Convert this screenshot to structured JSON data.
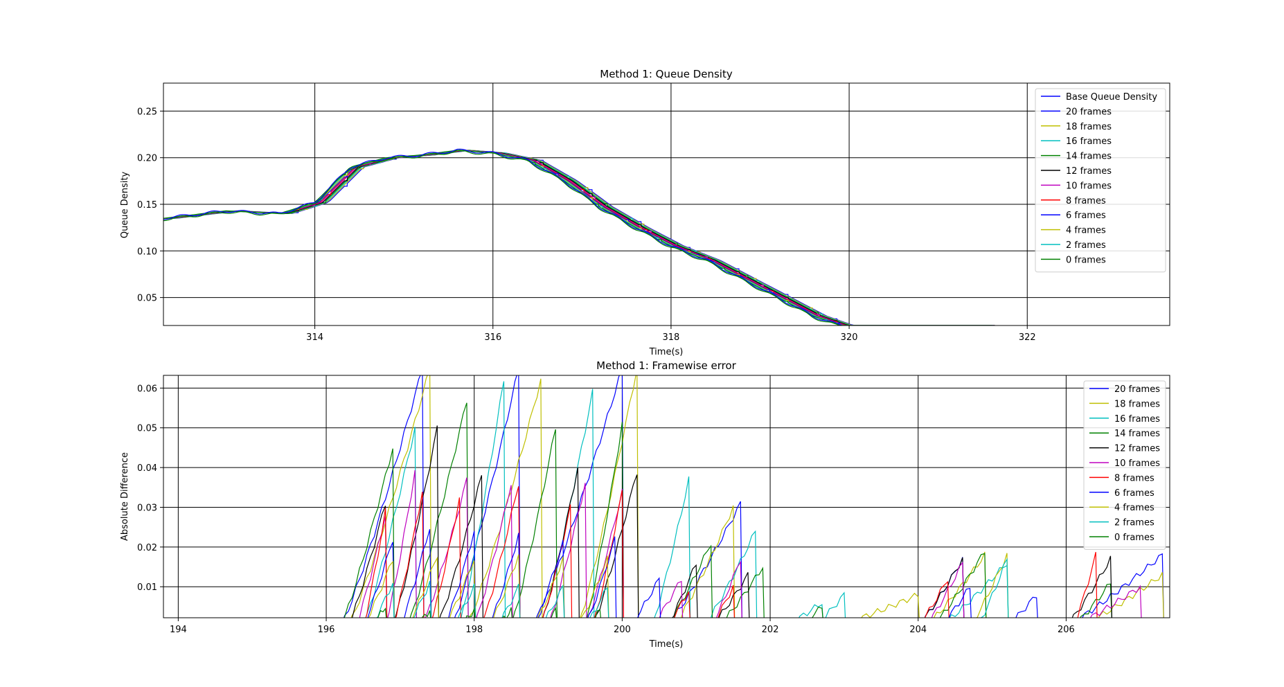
{
  "chart_data": [
    {
      "type": "line",
      "title": "Method 1: Queue Density",
      "xlabel": "Time(s)",
      "ylabel": "Queue Density",
      "xlim": [
        312.3,
        323.6
      ],
      "ylim": [
        0.02,
        0.28
      ],
      "xticks": [
        314,
        316,
        318,
        320,
        322
      ],
      "xtick_labels": [
        "314",
        "316",
        "318",
        "320",
        "322"
      ],
      "yticks": [
        0.05,
        0.1,
        0.15,
        0.2,
        0.25
      ],
      "ytick_labels": [
        "0.05",
        "0.10",
        "0.15",
        "0.20",
        "0.25"
      ],
      "grid": true,
      "legend_position": "top-right",
      "series": [
        {
          "name": "Base Queue Density",
          "color": "#0000ff",
          "x": [
            312.3,
            313.0,
            313.6,
            314.0,
            314.4,
            314.8,
            315.2,
            315.6,
            316.0,
            316.4,
            316.8,
            317.2,
            317.6,
            318.0,
            318.4,
            318.8,
            319.2,
            319.6,
            319.9
          ],
          "y": [
            0.135,
            0.143,
            0.14,
            0.152,
            0.19,
            0.2,
            0.203,
            0.208,
            0.205,
            0.197,
            0.175,
            0.147,
            0.125,
            0.105,
            0.09,
            0.07,
            0.05,
            0.03,
            0.02
          ]
        },
        {
          "name": "20 frames",
          "color": "#0000ff",
          "shift": 1.0
        },
        {
          "name": "18 frames",
          "color": "#bfbf00",
          "shift": 0.9
        },
        {
          "name": "16 frames",
          "color": "#00bfbf",
          "shift": 0.8
        },
        {
          "name": "14 frames",
          "color": "#008000",
          "shift": 0.7
        },
        {
          "name": "12 frames",
          "color": "#000000",
          "shift": 0.6
        },
        {
          "name": "10 frames",
          "color": "#bf00bf",
          "shift": 0.5
        },
        {
          "name": "8 frames",
          "color": "#ff0000",
          "shift": 0.4
        },
        {
          "name": "6 frames",
          "color": "#0000ff",
          "shift": 0.3
        },
        {
          "name": "4 frames",
          "color": "#bfbf00",
          "shift": 0.2
        },
        {
          "name": "2 frames",
          "color": "#00bfbf",
          "shift": 0.1
        },
        {
          "name": "0 frames",
          "color": "#008000",
          "shift": 0.0
        }
      ]
    },
    {
      "type": "line",
      "title": "Method 1: Framewise error",
      "xlabel": "Time(s)",
      "ylabel": "Absolute Difference",
      "xlim": [
        193.8,
        207.4
      ],
      "ylim": [
        0.0022,
        0.0632
      ],
      "xticks": [
        194,
        196,
        198,
        200,
        202,
        204,
        206
      ],
      "xtick_labels": [
        "194",
        "196",
        "198",
        "200",
        "202",
        "204",
        "206"
      ],
      "yticks": [
        0.01,
        0.02,
        0.03,
        0.04,
        0.05,
        0.06
      ],
      "ytick_labels": [
        "0.01",
        "0.02",
        "0.03",
        "0.04",
        "0.05",
        "0.06"
      ],
      "grid": true,
      "legend_position": "top-right",
      "series": [
        {
          "name": "20 frames",
          "color": "#0000ff",
          "peaks": [
            [
              196.2,
              197.3,
              0.065
            ],
            [
              197.7,
              198.6,
              0.065
            ],
            [
              198.8,
              200.0,
              0.065
            ],
            [
              200.6,
              201.6,
              0.031
            ],
            [
              204.0,
              204.6,
              0.017
            ],
            [
              206.0,
              207.3,
              0.018
            ]
          ]
        },
        {
          "name": "18 frames",
          "color": "#bfbf00",
          "peaks": [
            [
              196.3,
              197.4,
              0.065
            ],
            [
              197.9,
              198.9,
              0.062
            ],
            [
              199.4,
              200.2,
              0.065
            ],
            [
              200.7,
              201.5,
              0.03
            ],
            [
              204.1,
              204.9,
              0.018
            ],
            [
              206.2,
              207.3,
              0.013
            ]
          ]
        },
        {
          "name": "16 frames",
          "color": "#00bfbf",
          "peaks": [
            [
              196.5,
              197.2,
              0.05
            ],
            [
              197.8,
              198.4,
              0.062
            ],
            [
              198.9,
              199.6,
              0.059
            ],
            [
              200.4,
              200.9,
              0.037
            ],
            [
              201.1,
              201.8,
              0.024
            ],
            [
              204.3,
              205.2,
              0.016
            ]
          ]
        },
        {
          "name": "14 frames",
          "color": "#008000",
          "peaks": [
            [
              196.2,
              196.9,
              0.045
            ],
            [
              197.1,
              197.9,
              0.057
            ],
            [
              198.5,
              199.1,
              0.05
            ],
            [
              199.5,
              200.0,
              0.051
            ],
            [
              200.6,
              201.2,
              0.021
            ],
            [
              201.3,
              201.9,
              0.015
            ],
            [
              204.2,
              204.9,
              0.019
            ],
            [
              206.1,
              206.6,
              0.011
            ]
          ]
        },
        {
          "name": "12 frames",
          "color": "#000000",
          "peaks": [
            [
              196.3,
              196.8,
              0.031
            ],
            [
              196.9,
              197.5,
              0.05
            ],
            [
              197.5,
              198.1,
              0.038
            ],
            [
              198.9,
              199.4,
              0.04
            ],
            [
              199.6,
              200.2,
              0.039
            ],
            [
              200.6,
              201.0,
              0.016
            ],
            [
              201.2,
              201.7,
              0.013
            ],
            [
              204.0,
              204.6,
              0.017
            ],
            [
              206.0,
              206.6,
              0.017
            ]
          ]
        },
        {
          "name": "10 frames",
          "color": "#bf00bf",
          "peaks": [
            [
              196.4,
              196.8,
              0.028
            ],
            [
              196.8,
              197.2,
              0.039
            ],
            [
              197.3,
              197.9,
              0.037
            ],
            [
              198.0,
              198.5,
              0.036
            ],
            [
              199.0,
              199.5,
              0.036
            ],
            [
              199.5,
              200.0,
              0.034
            ],
            [
              200.4,
              200.8,
              0.012
            ],
            [
              201.2,
              201.6,
              0.017
            ],
            [
              204.1,
              204.6,
              0.016
            ],
            [
              206.1,
              207.0,
              0.01
            ]
          ]
        },
        {
          "name": "8 frames",
          "color": "#ff0000",
          "peaks": [
            [
              196.5,
              196.8,
              0.029
            ],
            [
              196.9,
              197.3,
              0.034
            ],
            [
              197.4,
              197.8,
              0.032
            ],
            [
              198.1,
              198.6,
              0.036
            ],
            [
              198.9,
              199.3,
              0.03
            ],
            [
              199.6,
              200.0,
              0.034
            ],
            [
              200.6,
              200.9,
              0.009
            ],
            [
              201.2,
              201.5,
              0.01
            ],
            [
              204.0,
              204.4,
              0.012
            ],
            [
              206.1,
              206.4,
              0.018
            ]
          ]
        },
        {
          "name": "6 frames",
          "color": "#0000ff",
          "peaks": [
            [
              196.5,
              196.9,
              0.022
            ],
            [
              197.0,
              197.4,
              0.025
            ],
            [
              197.6,
              198.0,
              0.024
            ],
            [
              198.2,
              198.6,
              0.023
            ],
            [
              198.8,
              199.2,
              0.021
            ],
            [
              199.5,
              199.9,
              0.022
            ],
            [
              200.1,
              200.5,
              0.012
            ],
            [
              204.3,
              204.7,
              0.01
            ],
            [
              205.2,
              205.6,
              0.008
            ]
          ]
        },
        {
          "name": "4 frames",
          "color": "#bfbf00",
          "peaks": [
            [
              196.5,
              196.9,
              0.017
            ],
            [
              197.1,
              197.5,
              0.018
            ],
            [
              197.6,
              198.0,
              0.017
            ],
            [
              198.2,
              198.6,
              0.018
            ],
            [
              198.8,
              199.2,
              0.017
            ],
            [
              199.4,
              199.8,
              0.017
            ],
            [
              202.9,
              204.0,
              0.008
            ],
            [
              204.7,
              205.2,
              0.018
            ]
          ]
        },
        {
          "name": "2 frames",
          "color": "#00bfbf",
          "peaks": [
            [
              196.6,
              196.9,
              0.011
            ],
            [
              197.1,
              197.4,
              0.011
            ],
            [
              197.7,
              198.0,
              0.01
            ],
            [
              198.3,
              198.6,
              0.01
            ],
            [
              198.9,
              199.2,
              0.01
            ],
            [
              199.5,
              199.8,
              0.01
            ],
            [
              202.2,
              202.7,
              0.006
            ],
            [
              202.6,
              203.0,
              0.008
            ],
            [
              204.8,
              205.2,
              0.017
            ]
          ]
        },
        {
          "name": "0 frames",
          "color": "#008000",
          "peaks": [
            [
              196.6,
              196.8,
              0.005
            ],
            [
              197.2,
              197.4,
              0.004
            ],
            [
              197.8,
              198.0,
              0.004
            ],
            [
              198.3,
              198.5,
              0.004
            ],
            [
              198.9,
              199.1,
              0.004
            ],
            [
              199.5,
              199.7,
              0.004
            ],
            [
              202.4,
              202.7,
              0.005
            ]
          ]
        }
      ]
    }
  ]
}
